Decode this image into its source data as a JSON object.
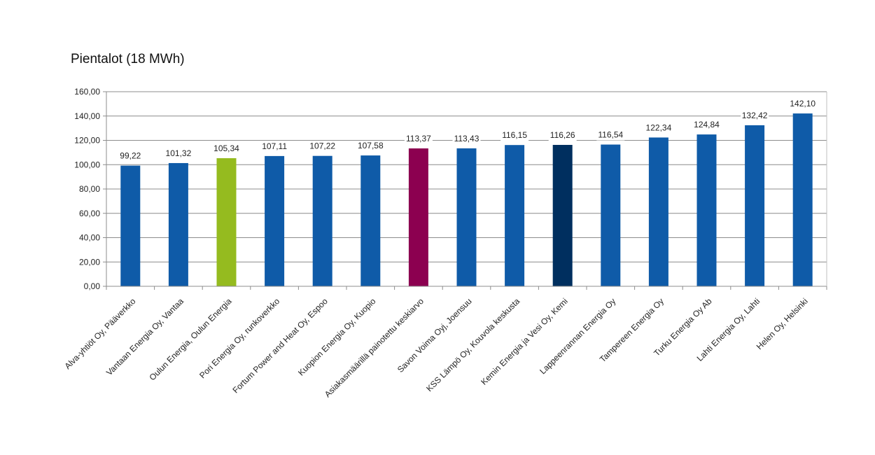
{
  "chart_data": {
    "type": "bar",
    "title": "Pientalot (18 MWh)",
    "xlabel": "",
    "ylabel": "",
    "ylim": [
      0,
      160
    ],
    "yticks": [
      "0,00",
      "20,00",
      "40,00",
      "60,00",
      "80,00",
      "100,00",
      "120,00",
      "140,00",
      "160,00"
    ],
    "ytick_values": [
      0,
      20,
      40,
      60,
      80,
      100,
      120,
      140,
      160
    ],
    "grid": true,
    "legend": "none",
    "categories": [
      "Alva-yhtiöt Oy, Pääverkko",
      "Vantaan Energia Oy, Vantaa",
      "Oulun Energia, Oulun Energia",
      "Pori Energia Oy, runkoverkko",
      "Fortum Power and Heat Oy, Espoo",
      "Kuopion Energia Oy, Kuopio",
      "Asiakasmäärillä painotettu keskiarvo",
      "Savon Voima Oyj, Joensuu",
      "KSS Lämpö Oy, Kouvola keskusta",
      "Kemin Energia ja Vesi Oy, Kemi",
      "Lappeenrannan Energia Oy",
      "Tampereen Energia Oy",
      "Turku Energia Oy Ab",
      "Lahti Energia Oy, Lahti",
      "Helen Oy, Helsinki"
    ],
    "values": [
      99.22,
      101.32,
      105.34,
      107.11,
      107.22,
      107.58,
      113.37,
      113.43,
      116.15,
      116.26,
      116.54,
      122.34,
      124.84,
      132.42,
      142.1
    ],
    "value_labels": [
      "99,22",
      "101,32",
      "105,34",
      "107,11",
      "107,22",
      "107,58",
      "113,37",
      "113,43",
      "116,15",
      "116,26",
      "116,54",
      "122,34",
      "124,84",
      "132,42",
      "142,10"
    ],
    "colors": [
      "#0f5ba8",
      "#0f5ba8",
      "#95bb1f",
      "#0f5ba8",
      "#0f5ba8",
      "#0f5ba8",
      "#8c0050",
      "#0f5ba8",
      "#0f5ba8",
      "#002f5f",
      "#0f5ba8",
      "#0f5ba8",
      "#0f5ba8",
      "#0f5ba8",
      "#0f5ba8"
    ]
  }
}
